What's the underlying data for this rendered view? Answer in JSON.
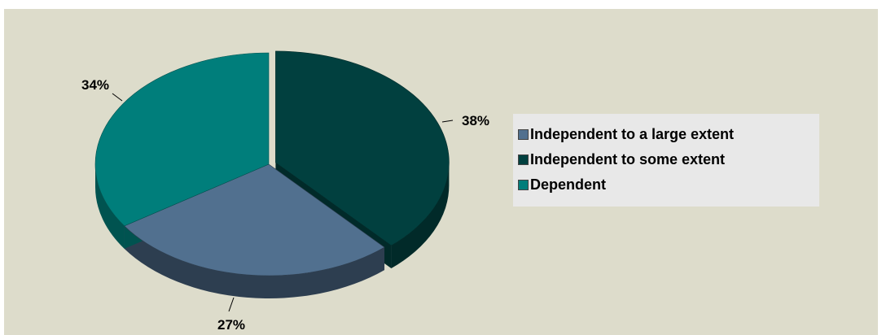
{
  "chart_data": {
    "type": "pie",
    "title": "",
    "three_d": true,
    "exploded_slice": "Independent to some extent",
    "legend_position": "right",
    "slices": [
      {
        "label": "Independent to some extent",
        "value": 38,
        "display": "38%",
        "color": "#01403f",
        "side_color": "#012a29"
      },
      {
        "label": "Independent to a large extent",
        "value": 27,
        "display": "27%",
        "color": "#51708f",
        "side_color": "#2d3e50"
      },
      {
        "label": "Dependent",
        "value": 34,
        "display": "34%",
        "color": "#007e7b",
        "side_color": "#005350"
      }
    ],
    "legend": [
      {
        "label": "Independent to a large extent",
        "color": "#51708f"
      },
      {
        "label": "Independent to some extent",
        "color": "#01403f"
      },
      {
        "label": "Dependent",
        "color": "#007e7b"
      }
    ]
  }
}
